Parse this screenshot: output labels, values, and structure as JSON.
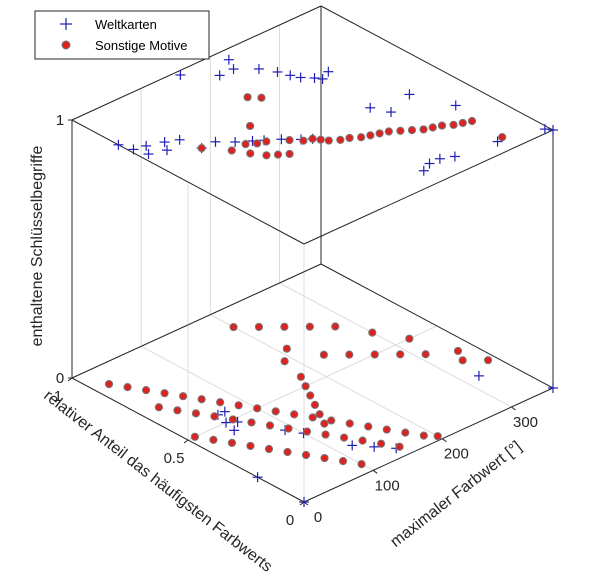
{
  "chart_data": {
    "type": "scatter",
    "projection": "3d",
    "xlabel": "maximaler Farbwert [°]",
    "ylabel": "relativer Anteil das häufigsten Farbwerts",
    "zlabel": "enthaltene Schlüsselbegriffe",
    "xlim": [
      0,
      360
    ],
    "ylim": [
      0,
      1
    ],
    "zlim": [
      0,
      1
    ],
    "x_ticks": [
      "0",
      "100",
      "200",
      "300"
    ],
    "y_ticks": [
      "0",
      "0.5",
      "1"
    ],
    "z_ticks": [
      "0",
      "1"
    ],
    "grid": true,
    "legend_position": "top-left",
    "series": [
      {
        "name": "Weltkarten",
        "marker": "plus",
        "color": "#1f1fb4",
        "points": [
          [
            0,
            0.8,
            1
          ],
          [
            5,
            0.75,
            1
          ],
          [
            10,
            0.7,
            1
          ],
          [
            20,
            0.74,
            1
          ],
          [
            30,
            0.68,
            1
          ],
          [
            40,
            0.72,
            1
          ],
          [
            55,
            0.7,
            1
          ],
          [
            60,
            0.62,
            1
          ],
          [
            80,
            0.62,
            1
          ],
          [
            95,
            0.58,
            1
          ],
          [
            110,
            0.55,
            1
          ],
          [
            120,
            0.53,
            1
          ],
          [
            135,
            0.5,
            1
          ],
          [
            150,
            0.46,
            1
          ],
          [
            160,
            0.44,
            1
          ],
          [
            200,
            0.08,
            1
          ],
          [
            215,
            0.1,
            1
          ],
          [
            230,
            0.1,
            1
          ],
          [
            245,
            0.08,
            1
          ],
          [
            300,
            0.06,
            1
          ],
          [
            355,
            0.02,
            1
          ],
          [
            360,
            0,
            1
          ],
          [
            210,
            0.95,
            1
          ],
          [
            200,
            0.9,
            1
          ],
          [
            220,
            0.85,
            1
          ],
          [
            230,
            0.8,
            1
          ],
          [
            235,
            0.76,
            1
          ],
          [
            240,
            0.73,
            1
          ],
          [
            250,
            0.7,
            1
          ],
          [
            255,
            0.68,
            1
          ],
          [
            270,
            0.7,
            1
          ],
          [
            300,
            0.44,
            1
          ],
          [
            320,
            0.3,
            1
          ],
          [
            250,
            0.46,
            1
          ],
          [
            260,
            0.4,
            1
          ],
          [
            150,
            0.98,
            1
          ],
          [
            180,
            0.9,
            1
          ],
          [
            0,
            0.2,
            0
          ],
          [
            70,
            0.55,
            0
          ],
          [
            60,
            0.55,
            0
          ],
          [
            55,
            0.5,
            0
          ],
          [
            65,
            0.48,
            0
          ],
          [
            50,
            0.45,
            0
          ],
          [
            320,
            0.2,
            0
          ],
          [
            360,
            0,
            0
          ],
          [
            120,
            0.15,
            0
          ],
          [
            135,
            0.1,
            0
          ],
          [
            150,
            0.05,
            0
          ],
          [
            90,
            0.35,
            0
          ],
          [
            100,
            0.3,
            0
          ],
          [
            0,
            0,
            0
          ]
        ]
      },
      {
        "name": "Sonstige Motive",
        "marker": "circle",
        "color": "#dd2222",
        "edge": "#777777",
        "points": [
          [
            150,
            0.45,
            1
          ],
          [
            160,
            0.44,
            1
          ],
          [
            165,
            0.42,
            1
          ],
          [
            170,
            0.4,
            1
          ],
          [
            180,
            0.38,
            1
          ],
          [
            190,
            0.37,
            1
          ],
          [
            200,
            0.35,
            1
          ],
          [
            210,
            0.34,
            1
          ],
          [
            220,
            0.33,
            1
          ],
          [
            230,
            0.32,
            1
          ],
          [
            240,
            0.3,
            1
          ],
          [
            250,
            0.28,
            1
          ],
          [
            260,
            0.26,
            1
          ],
          [
            270,
            0.25,
            1
          ],
          [
            280,
            0.24,
            1
          ],
          [
            290,
            0.22,
            1
          ],
          [
            300,
            0.21,
            1
          ],
          [
            310,
            0.2,
            1
          ],
          [
            100,
            0.55,
            1
          ],
          [
            110,
            0.53,
            1
          ],
          [
            120,
            0.52,
            1
          ],
          [
            140,
            0.48,
            1
          ],
          [
            170,
            0.75,
            1
          ],
          [
            180,
            0.72,
            1
          ],
          [
            130,
            0.62,
            1
          ],
          [
            310,
            0.07,
            1
          ],
          [
            60,
            0.62,
            1
          ],
          [
            80,
            0.55,
            1
          ],
          [
            90,
            0.5,
            1
          ],
          [
            100,
            0.46,
            1
          ],
          [
            110,
            0.44,
            1
          ],
          [
            120,
            0.42,
            1
          ],
          [
            20,
            0.9,
            0
          ],
          [
            30,
            0.85,
            0
          ],
          [
            40,
            0.8,
            0
          ],
          [
            50,
            0.75,
            0
          ],
          [
            60,
            0.7,
            0
          ],
          [
            70,
            0.65,
            0
          ],
          [
            80,
            0.6,
            0
          ],
          [
            90,
            0.55,
            0
          ],
          [
            100,
            0.5,
            0
          ],
          [
            110,
            0.45,
            0
          ],
          [
            120,
            0.4,
            0
          ],
          [
            130,
            0.35,
            0
          ],
          [
            140,
            0.3,
            0
          ],
          [
            150,
            0.25,
            0
          ],
          [
            160,
            0.2,
            0
          ],
          [
            170,
            0.15,
            0
          ],
          [
            180,
            0.1,
            0
          ],
          [
            190,
            0.05,
            0
          ],
          [
            200,
            0.02,
            0
          ],
          [
            25,
            0.7,
            0
          ],
          [
            35,
            0.65,
            0
          ],
          [
            45,
            0.6,
            0
          ],
          [
            55,
            0.55,
            0
          ],
          [
            65,
            0.5,
            0
          ],
          [
            75,
            0.45,
            0
          ],
          [
            85,
            0.4,
            0
          ],
          [
            95,
            0.35,
            0
          ],
          [
            105,
            0.3,
            0
          ],
          [
            115,
            0.25,
            0
          ],
          [
            125,
            0.2,
            0
          ],
          [
            135,
            0.15,
            0
          ],
          [
            145,
            0.1,
            0
          ],
          [
            155,
            0.05,
            0
          ],
          [
            10,
            0.5,
            0
          ],
          [
            20,
            0.45,
            0
          ],
          [
            30,
            0.4,
            0
          ],
          [
            40,
            0.35,
            0
          ],
          [
            50,
            0.3,
            0
          ],
          [
            60,
            0.25,
            0
          ],
          [
            70,
            0.2,
            0
          ],
          [
            80,
            0.15,
            0
          ],
          [
            90,
            0.1,
            0
          ],
          [
            100,
            0.05,
            0
          ],
          [
            200,
            0.9,
            0
          ],
          [
            220,
            0.85,
            0
          ],
          [
            240,
            0.8,
            0
          ],
          [
            260,
            0.75,
            0
          ],
          [
            280,
            0.7,
            0
          ],
          [
            300,
            0.6,
            0
          ],
          [
            320,
            0.5,
            0
          ],
          [
            340,
            0.35,
            0
          ],
          [
            350,
            0.25,
            0
          ],
          [
            230,
            0.6,
            0
          ],
          [
            250,
            0.55,
            0
          ],
          [
            270,
            0.5,
            0
          ],
          [
            290,
            0.45,
            0
          ],
          [
            310,
            0.4,
            0
          ],
          [
            330,
            0.3,
            0
          ],
          [
            210,
            0.7,
            0
          ],
          [
            190,
            0.65,
            0
          ],
          [
            180,
            0.55,
            0
          ],
          [
            170,
            0.5,
            0
          ],
          [
            160,
            0.45,
            0
          ],
          [
            150,
            0.4,
            0
          ],
          [
            140,
            0.35,
            0
          ],
          [
            130,
            0.3,
            0
          ]
        ]
      }
    ]
  }
}
